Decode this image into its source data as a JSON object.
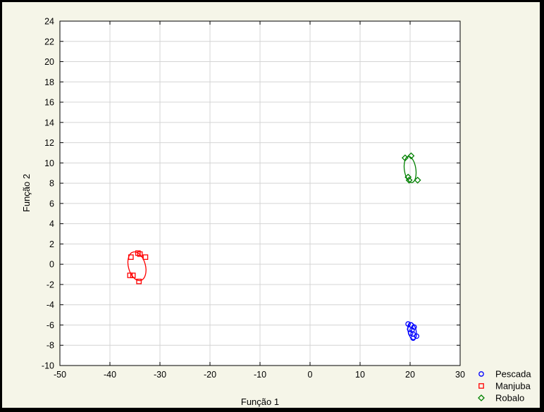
{
  "chart_data": {
    "type": "scatter",
    "title": "",
    "xlabel": "Função 1",
    "ylabel": "Função 2",
    "xlim": [
      -50,
      30
    ],
    "ylim": [
      -10,
      24
    ],
    "x_ticks": [
      -50,
      -40,
      -30,
      -20,
      -10,
      0,
      10,
      20,
      30
    ],
    "y_ticks": [
      -10,
      -8,
      -6,
      -4,
      -2,
      0,
      2,
      4,
      6,
      8,
      10,
      12,
      14,
      16,
      18,
      20,
      22,
      24
    ],
    "grid": true,
    "legend_position": "bottom-right",
    "series": [
      {
        "name": "Pescada",
        "marker": "circle",
        "color": "#0000ff",
        "points": [
          [
            19.6,
            -5.9
          ],
          [
            20.2,
            -6.0
          ],
          [
            20.8,
            -6.2
          ],
          [
            19.9,
            -6.4
          ],
          [
            20.4,
            -6.5
          ],
          [
            20.6,
            -6.9
          ],
          [
            21.3,
            -7.1
          ],
          [
            20.6,
            -7.3
          ],
          [
            20.1,
            -6.8
          ]
        ],
        "ellipse": {
          "cx": 20.4,
          "cy": -6.6,
          "rx": 0.8,
          "ry": 0.85,
          "angle": -12
        }
      },
      {
        "name": "Manjuba",
        "marker": "square",
        "color": "#ff0000",
        "points": [
          [
            -35.8,
            0.7
          ],
          [
            -34.4,
            1.1
          ],
          [
            -34.0,
            1.0
          ],
          [
            -32.9,
            0.7
          ],
          [
            -36.0,
            -1.1
          ],
          [
            -35.4,
            -1.1
          ],
          [
            -34.2,
            -1.7
          ]
        ],
        "ellipse": {
          "cx": -34.6,
          "cy": -0.2,
          "rx": 1.7,
          "ry": 1.45,
          "angle": -15
        }
      },
      {
        "name": "Robalo",
        "marker": "diamond",
        "color": "#008000",
        "points": [
          [
            19.0,
            10.5
          ],
          [
            20.2,
            10.7
          ],
          [
            19.6,
            8.6
          ],
          [
            19.8,
            8.3
          ],
          [
            21.5,
            8.3
          ]
        ],
        "ellipse": {
          "cx": 20.0,
          "cy": 9.35,
          "rx": 1.15,
          "ry": 1.3,
          "angle": -8
        }
      }
    ]
  }
}
